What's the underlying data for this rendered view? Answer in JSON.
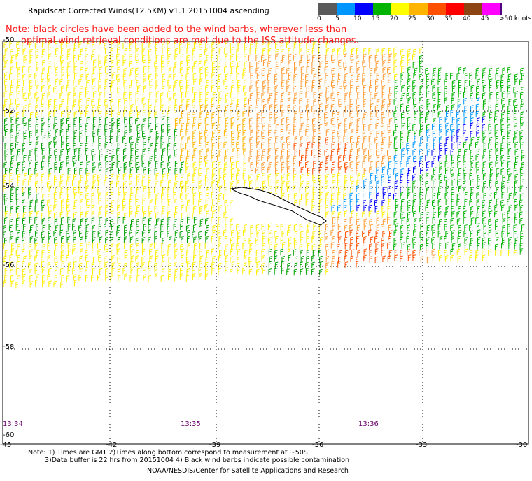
{
  "title": "Rapidscat Corrected Winds(12.5KM) v1.1 20151004 ascending",
  "note_line1": "Note: black circles have been added to the wind barbs, wherever less than",
  "note_line2": "optimal wind retrieval conditions are met due to the ISS attitude changes.",
  "colorbar": {
    "labels": [
      "0",
      "5",
      "10",
      "15",
      "20",
      "25",
      "30",
      "35",
      "40",
      "45",
      ">50 knots"
    ],
    "colors": [
      "#5a5a5a",
      "#0096ff",
      "#0000ff",
      "#00b400",
      "#ffff00",
      "#ffb400",
      "#ff5000",
      "#ff0000",
      "#8b4513",
      "#ff00ff",
      "#500080"
    ]
  },
  "axes": {
    "lon_labels": [
      "-45",
      "-42",
      "-39",
      "-36",
      "-33",
      "-30"
    ],
    "lat_labels": [
      "-50",
      "-52",
      "-54",
      "-56",
      "-58",
      "-60"
    ],
    "time_labels": [
      "13:34",
      "13:35",
      "13:36"
    ]
  },
  "footer": {
    "line1": "Note: 1) Times are GMT 2)Times along bottom correspond to measurement at ~50S",
    "line2": "3)Data buffer is 22 hrs from 20151004 4) Black wind barbs indicate possible contamination",
    "line3": "NOAA/NESDIS/Center for Satellite Applications and Research"
  }
}
